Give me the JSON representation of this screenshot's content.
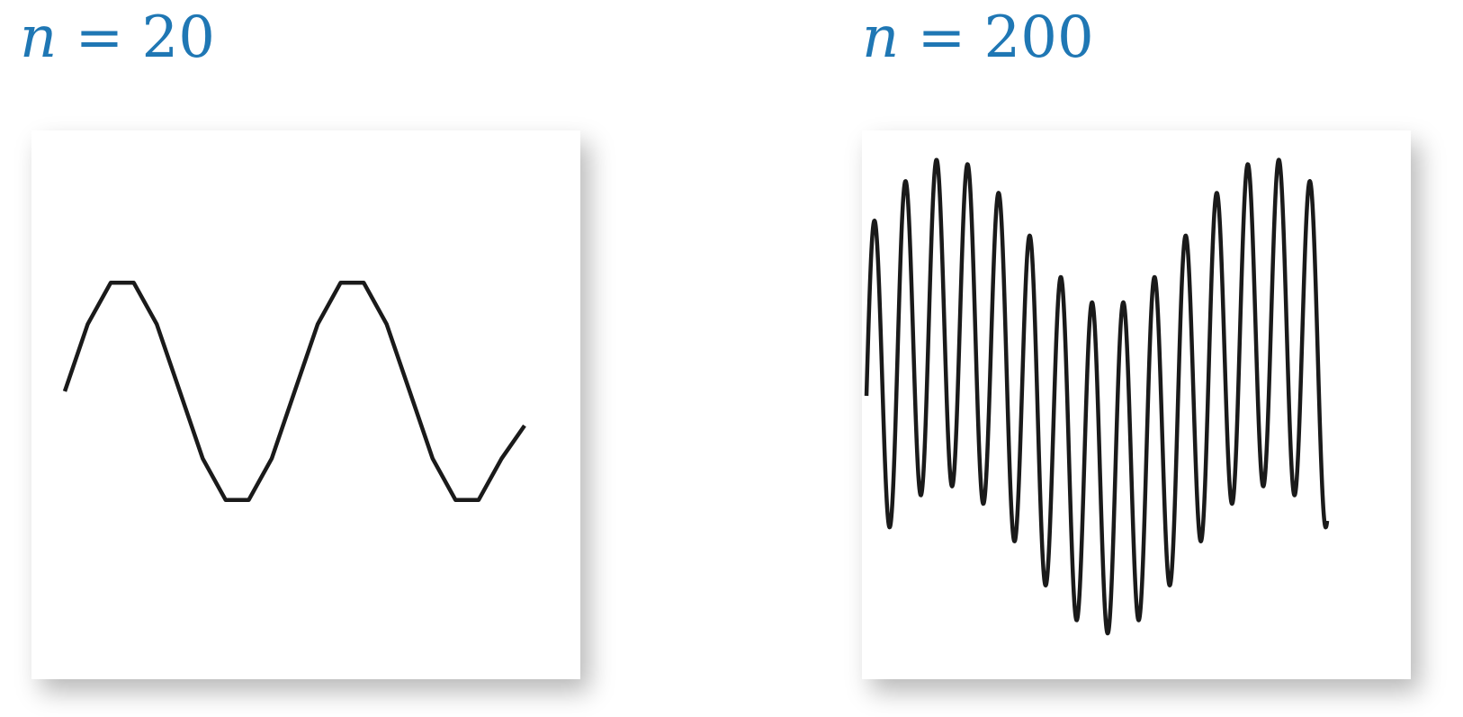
{
  "chart_data": [
    {
      "type": "line",
      "title_var": "n",
      "title_rest": " = 20",
      "n": 20,
      "grid": false,
      "axes_visible": false,
      "x": [
        0,
        1,
        2,
        3,
        4,
        5,
        6,
        7,
        8,
        9,
        10,
        11,
        12,
        13,
        14,
        15,
        16,
        17,
        18,
        19,
        20
      ],
      "y": [
        0,
        0.588,
        0.951,
        0.951,
        0.588,
        0,
        -0.588,
        -0.951,
        -0.951,
        -0.588,
        0,
        0.588,
        0.951,
        0.951,
        0.588,
        0,
        -0.588,
        -0.951,
        -0.951,
        -0.588,
        -0.3
      ],
      "series": [
        {
          "values": [
            0,
            0.588,
            0.951,
            0.951,
            0.588,
            0,
            -0.588,
            -0.951,
            -0.951,
            -0.588,
            0,
            0.588,
            0.951,
            0.951,
            0.588,
            0,
            -0.588,
            -0.951,
            -0.951,
            -0.588,
            -0.3
          ],
          "color": "#1a1a1a"
        }
      ]
    },
    {
      "type": "line",
      "title_var": "n",
      "title_rest": " = 200",
      "n": 200,
      "grid": false,
      "axes_visible": false,
      "x_range": [
        0,
        10
      ],
      "y_range": [
        -1.4,
        1.4
      ],
      "series": [
        {
          "color": "#1a1a1a"
        }
      ]
    }
  ]
}
